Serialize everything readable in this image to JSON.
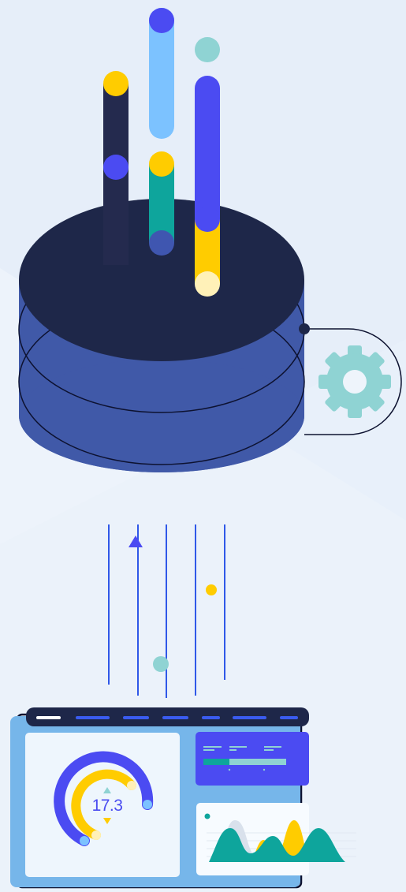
{
  "dashboard": {
    "gauge_value": "17.3",
    "gauge_level": 0.75
  },
  "colors": {
    "background": "#e6eef9",
    "navy": "#1e2749",
    "cylinder_blue": "#4059a8",
    "indigo": "#4b4bf2",
    "yellow": "#ffcc00",
    "teal": "#0ea59c",
    "light_blue": "#7cc2ff",
    "mint": "#8fd3d3",
    "panel_blue": "#76b6ea"
  },
  "icons": [
    "database-icon",
    "gear-icon",
    "up-arrow-icon",
    "gauge-icon",
    "area-chart-icon"
  ]
}
